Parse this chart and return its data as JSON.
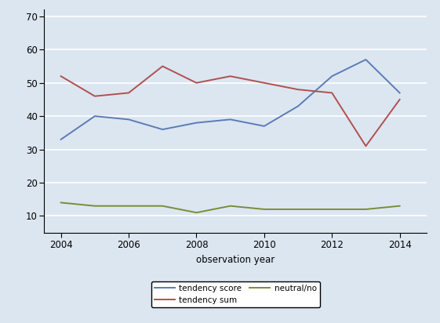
{
  "title": "",
  "xlabel": "observation year",
  "ylabel": "",
  "years": [
    2004,
    2005,
    2006,
    2007,
    2008,
    2009,
    2010,
    2011,
    2012,
    2013,
    2014
  ],
  "blue_line": {
    "label": "tendency score",
    "color": "#5B7BB8",
    "values": [
      33,
      40,
      39,
      36,
      38,
      39,
      37,
      43,
      52,
      57,
      47
    ]
  },
  "red_line": {
    "label": "tendency sum",
    "color": "#B05050",
    "values": [
      52,
      46,
      47,
      55,
      50,
      52,
      50,
      48,
      47,
      31,
      45
    ]
  },
  "green_line": {
    "label": "neutral/no",
    "color": "#7B8C3A",
    "values": [
      14,
      13,
      13,
      13,
      11,
      13,
      12,
      12,
      12,
      12,
      13
    ]
  },
  "xlim": [
    2003.5,
    2014.8
  ],
  "ylim": [
    5,
    72
  ],
  "yticks": [
    10,
    20,
    30,
    40,
    50,
    60,
    70
  ],
  "xticks": [
    2004,
    2006,
    2008,
    2010,
    2012,
    2014
  ],
  "background_color": "#DCE6F0",
  "plot_bg_color": "#DCE6F0",
  "grid_color": "#FFFFFF",
  "legend_fontsize": 7.5,
  "tick_fontsize": 8.5,
  "label_fontsize": 8.5,
  "line_width": 1.4
}
